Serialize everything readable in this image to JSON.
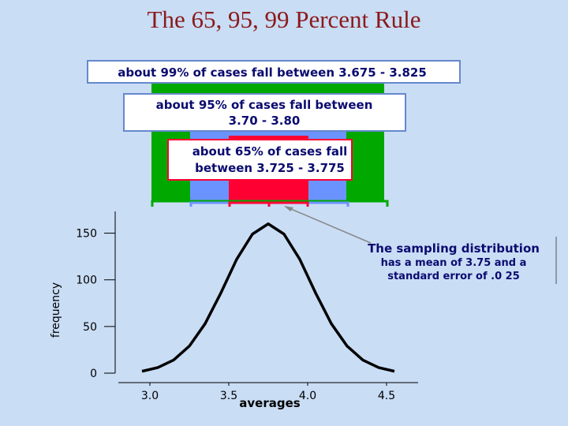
{
  "chart_data": {
    "type": "line",
    "title": "The 65, 95, 99 Percent Rule",
    "annotations": [
      {
        "lines": [
          "about 99% of cases fall between 3.675 - 3.825"
        ]
      },
      {
        "lines": [
          "about 95% of cases fall between",
          "3.70 - 3.80"
        ]
      },
      {
        "lines": [
          "about 65% of cases fall",
          "between 3.725 - 3.775"
        ]
      },
      {
        "lines": [
          "The sampling distribution",
          "has a mean of 3.75 and a",
          "standard error of .0 25"
        ]
      }
    ],
    "xlabel": "averages",
    "ylabel": "frequency",
    "x": [
      2.95,
      3.05,
      3.15,
      3.25,
      3.35,
      3.45,
      3.55,
      3.65,
      3.75,
      3.85,
      3.95,
      4.05,
      4.15,
      4.25,
      4.35,
      4.45,
      4.55
    ],
    "series": [
      {
        "color": "#000000",
        "values": [
          2,
          6,
          14,
          29,
          53,
          86,
          122,
          149,
          160,
          149,
          122,
          86,
          53,
          29,
          14,
          6,
          2
        ]
      }
    ],
    "xlim": [
      2.8,
      4.7
    ],
    "ylim": [
      0,
      175
    ],
    "xticks": [
      {
        "value": 3,
        "label": "3.0"
      },
      3.5,
      {
        "value": 4,
        "label": "4.0"
      },
      4.5
    ],
    "yticks": [
      0,
      50,
      100,
      150
    ]
  }
}
